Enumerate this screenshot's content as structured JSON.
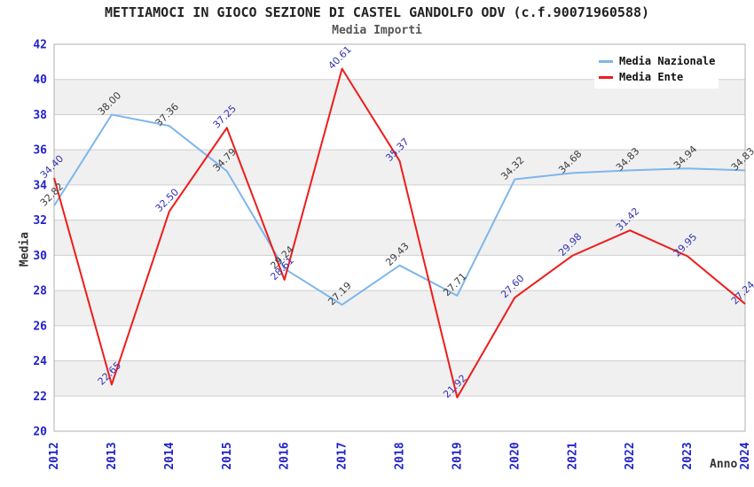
{
  "title": "METTIAMOCI IN GIOCO SEZIONE DI CASTEL GANDOLFO ODV (c.f.90071960588)",
  "subtitle": "Media Importi",
  "chart_data": {
    "type": "line",
    "x": [
      "2012",
      "2013",
      "2014",
      "2015",
      "2016",
      "2017",
      "2018",
      "2019",
      "2020",
      "2021",
      "2022",
      "2023",
      "2024"
    ],
    "series": [
      {
        "name": "Media Nazionale",
        "color": "#7eb6ec",
        "label_color": "#3c3c3c",
        "values": [
          32.82,
          38.0,
          37.36,
          34.79,
          29.24,
          27.19,
          29.43,
          27.71,
          34.32,
          34.68,
          34.83,
          34.94,
          34.83
        ]
      },
      {
        "name": "Media Ente",
        "color": "#ee1c1c",
        "label_color": "#3333b4",
        "values": [
          34.4,
          22.65,
          32.5,
          37.25,
          28.61,
          40.61,
          35.37,
          21.92,
          27.6,
          29.98,
          31.42,
          29.95,
          27.24
        ]
      }
    ],
    "xlabel": "Anno",
    "ylabel": "Media",
    "ylim": [
      20,
      42
    ],
    "yticks": [
      20,
      22,
      24,
      26,
      28,
      30,
      32,
      34,
      36,
      38,
      40,
      42
    ],
    "grid": true,
    "band_fill": "#f0f0f0",
    "gridline_color": "#cfcfcf",
    "border_color": "#b0b0b0",
    "tick_label_color": "#2222cc",
    "legend_position": "top-right"
  }
}
